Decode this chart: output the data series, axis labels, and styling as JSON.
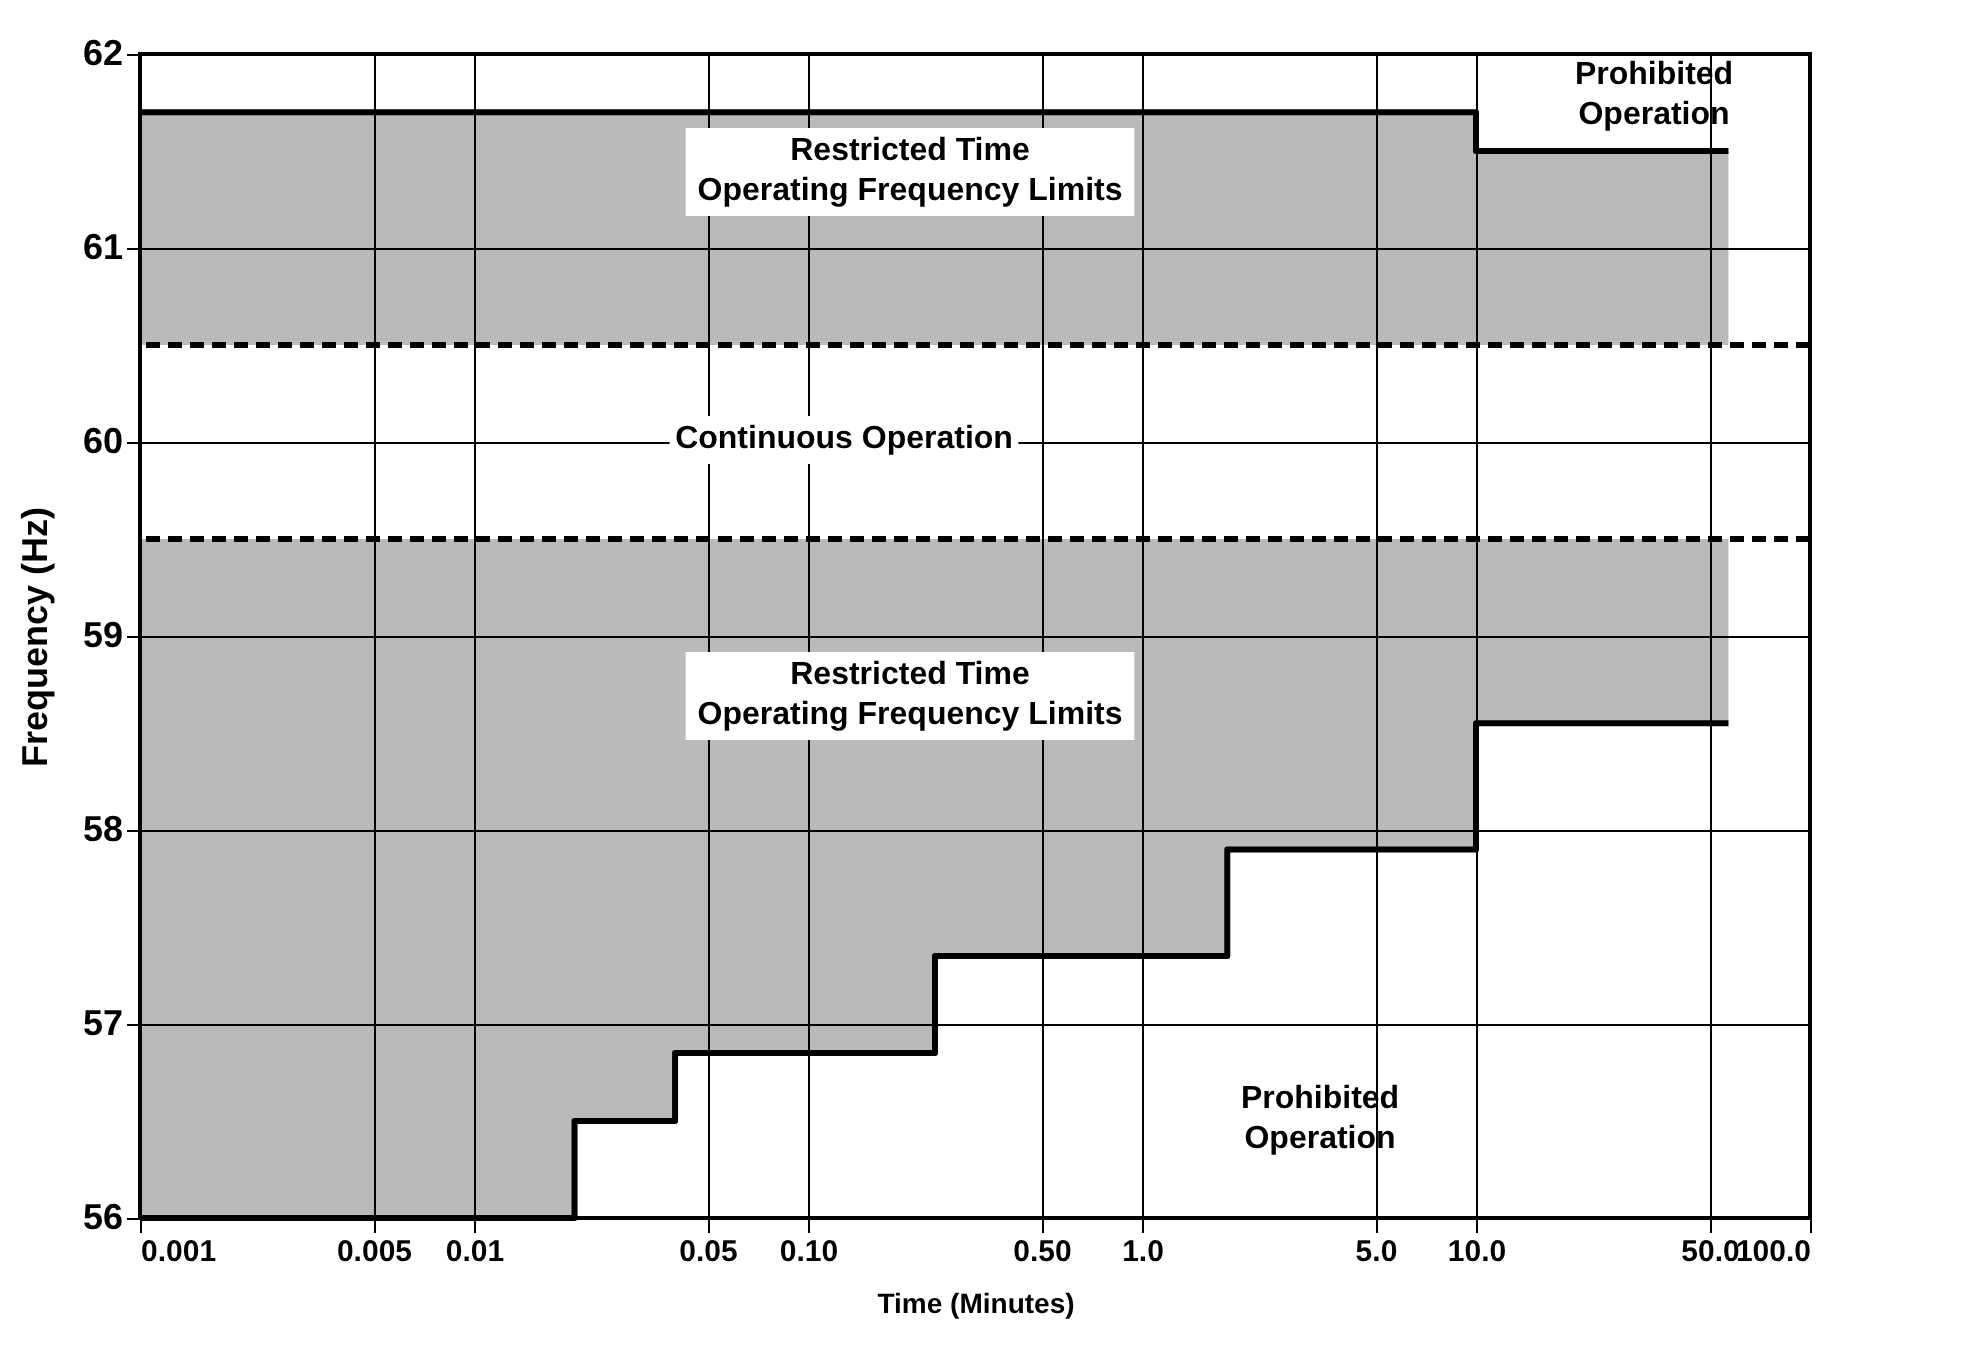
{
  "chart_data": {
    "type": "step",
    "xlabel": "Time (Minutes)",
    "ylabel": "Frequency (Hz)",
    "log": "x",
    "grid": true,
    "xlim": [
      0.001,
      100
    ],
    "xticks": [
      0.001,
      0.005,
      0.01,
      0.05,
      {
        "value": 0.1,
        "label": "0.10"
      },
      {
        "value": 0.5,
        "label": "0.50"
      },
      {
        "value": 1,
        "label": "1.0"
      },
      {
        "value": 5,
        "label": "5.0"
      },
      {
        "value": 10,
        "label": "10.0"
      },
      {
        "value": 50,
        "label": "50.0"
      },
      {
        "value": 100,
        "label": "100.0"
      }
    ],
    "ylim": [
      56,
      62
    ],
    "yticks": [
      56,
      57,
      58,
      59,
      60,
      61,
      62
    ],
    "series": [
      {
        "color": "#000000",
        "x": [
          0.001,
          10,
          57
        ],
        "values": [
          61.7,
          61.5,
          61.5
        ],
        "lower": [
          60.5,
          60.5,
          60.5
        ],
        "upper": [
          61.7,
          61.5,
          61.5
        ]
      },
      {
        "color": "#000000",
        "x": [
          0.001,
          0.02,
          0.04,
          0.24,
          1.8,
          10,
          57
        ],
        "values": [
          56,
          56.5,
          56.85,
          57.35,
          57.9,
          58.55,
          58.55
        ],
        "lower": [
          56,
          56.5,
          56.85,
          57.35,
          57.9,
          58.55,
          58.55
        ],
        "upper": [
          59.5,
          59.5,
          59.5,
          59.5,
          59.5,
          59.5,
          59.5
        ]
      }
    ],
    "ref_lines": [
      {
        "axis": "y",
        "value": 60.5,
        "color": "#000000",
        "line_style": "dashed"
      },
      {
        "axis": "y",
        "value": 59.5,
        "color": "#000000",
        "line_style": "dashed"
      }
    ],
    "annotations": [
      "Prohibited\nOperation",
      "Restricted Time\nOperating Frequency Limits",
      "Continuous Operation",
      "Restricted Time\nOperating Frequency Limits",
      "Prohibited\nOperation"
    ]
  }
}
